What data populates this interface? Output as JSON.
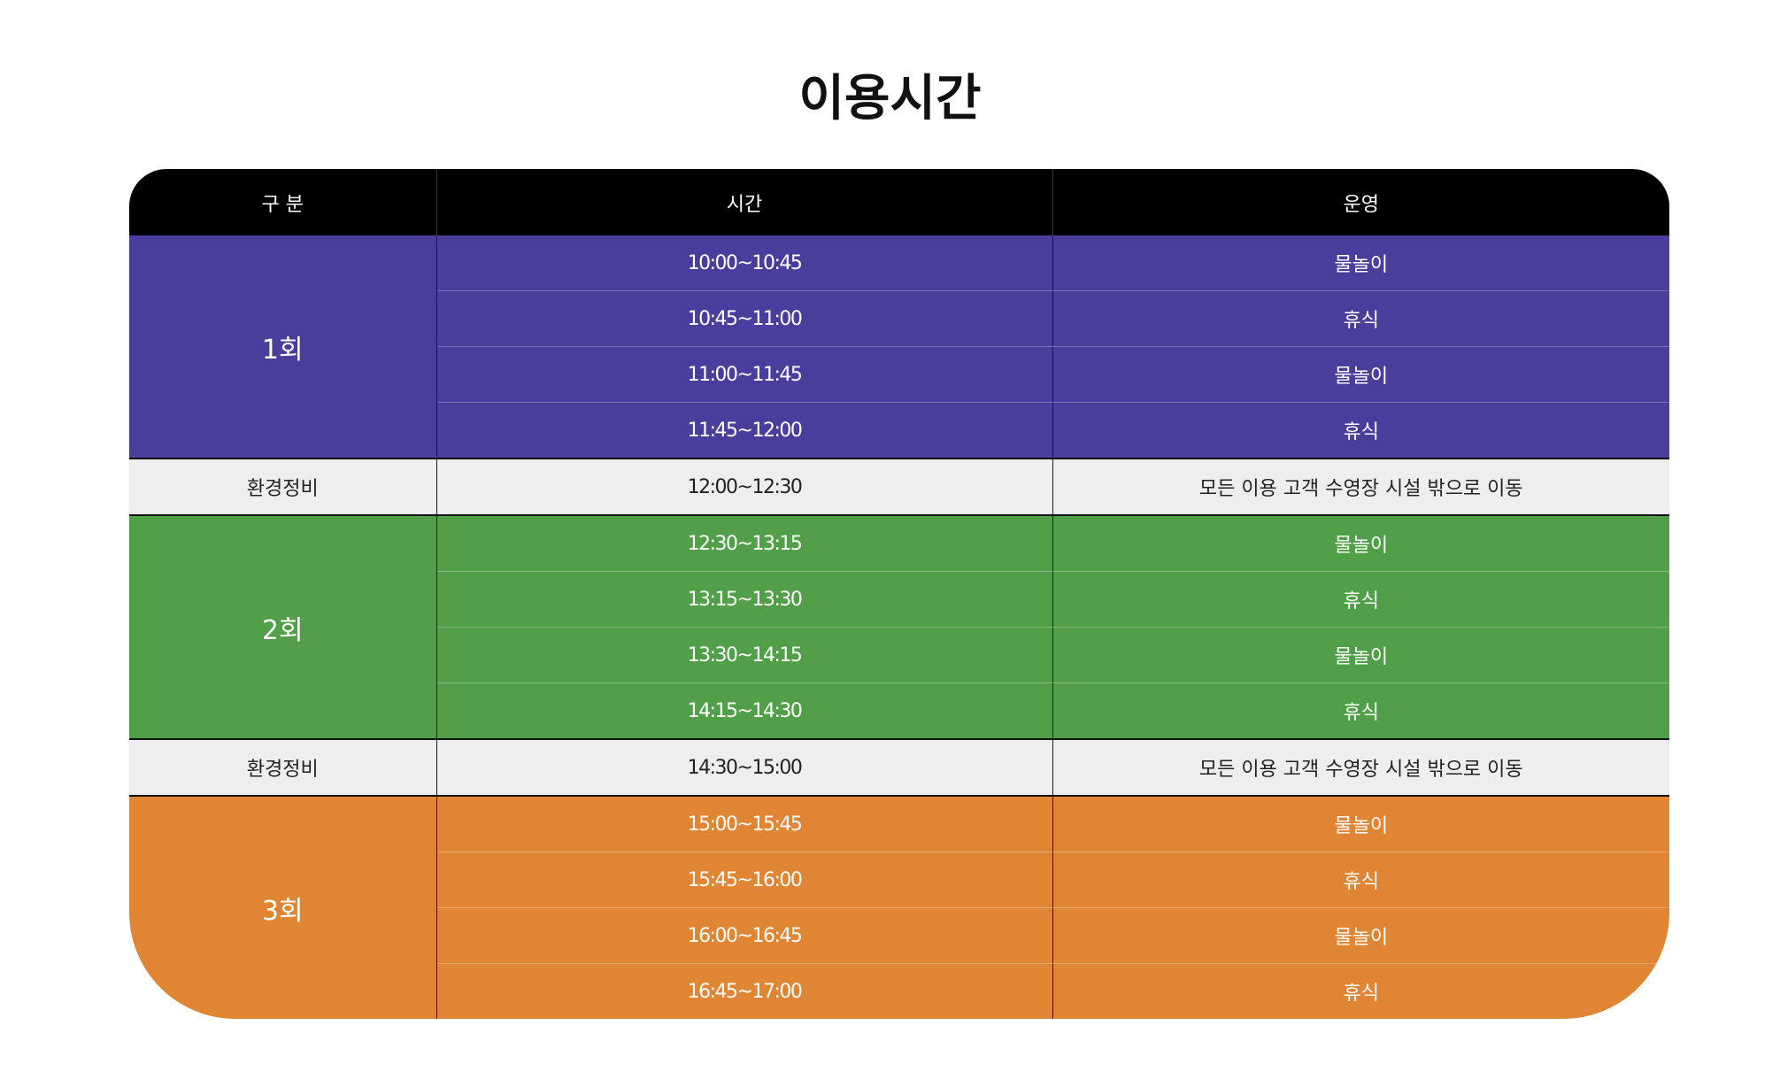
{
  "title": "이용시간",
  "table": {
    "headers": [
      "구 분",
      "시간",
      "운영"
    ],
    "colors": {
      "header": "#000000",
      "session1": "#4a3e9c",
      "session2": "#529f4a",
      "session3": "#e08533",
      "maintenance": "#eeeeee"
    },
    "sessions": [
      {
        "label": "1회",
        "rows": [
          {
            "time": "10:00~10:45",
            "activity": "물놀이"
          },
          {
            "time": "10:45~11:00",
            "activity": "휴식"
          },
          {
            "time": "11:00~11:45",
            "activity": "물놀이"
          },
          {
            "time": "11:45~12:00",
            "activity": "휴식"
          }
        ]
      },
      {
        "label": "2회",
        "rows": [
          {
            "time": "12:30~13:15",
            "activity": "물놀이"
          },
          {
            "time": "13:15~13:30",
            "activity": "휴식"
          },
          {
            "time": "13:30~14:15",
            "activity": "물놀이"
          },
          {
            "time": "14:15~14:30",
            "activity": "휴식"
          }
        ]
      },
      {
        "label": "3회",
        "rows": [
          {
            "time": "15:00~15:45",
            "activity": "물놀이"
          },
          {
            "time": "15:45~16:00",
            "activity": "휴식"
          },
          {
            "time": "16:00~16:45",
            "activity": "물놀이"
          },
          {
            "time": "16:45~17:00",
            "activity": "휴식"
          }
        ]
      }
    ],
    "maintenance": [
      {
        "label": "환경정비",
        "time": "12:00~12:30",
        "activity": "모든 이용 고객 수영장 시설 밖으로 이동"
      },
      {
        "label": "환경정비",
        "time": "14:30~15:00",
        "activity": "모든 이용 고객 수영장 시설 밖으로 이동"
      }
    ]
  }
}
